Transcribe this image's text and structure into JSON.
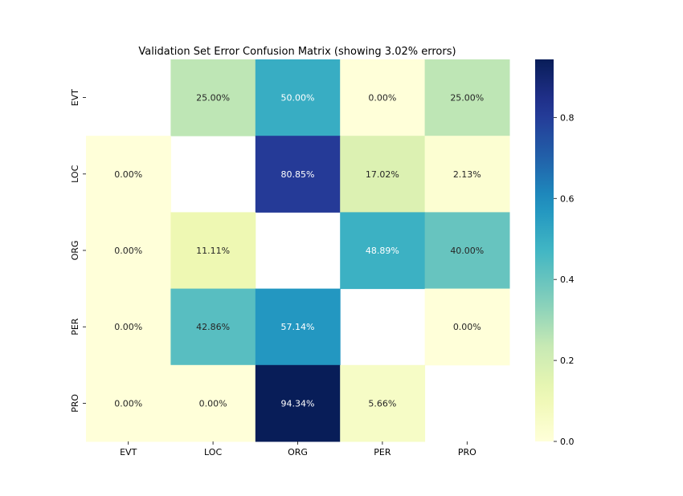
{
  "chart_data": {
    "type": "heatmap",
    "title": "Validation Set Error Confusion Matrix (showing 3.02% errors)",
    "rows": [
      "EVT",
      "LOC",
      "ORG",
      "PER",
      "PRO"
    ],
    "cols": [
      "EVT",
      "LOC",
      "ORG",
      "PER",
      "PRO"
    ],
    "values": [
      [
        null,
        0.25,
        0.5,
        0.0,
        0.25
      ],
      [
        0.0,
        null,
        0.8085,
        0.1702,
        0.0213
      ],
      [
        0.0,
        0.1111,
        null,
        0.4889,
        0.4
      ],
      [
        0.0,
        0.4286,
        0.5714,
        null,
        0.0
      ],
      [
        0.0,
        0.0,
        0.9434,
        0.0566,
        null
      ]
    ],
    "labels": [
      [
        "",
        "25.00%",
        "50.00%",
        "0.00%",
        "25.00%"
      ],
      [
        "0.00%",
        "",
        "80.85%",
        "17.02%",
        "2.13%"
      ],
      [
        "0.00%",
        "11.11%",
        "",
        "48.89%",
        "40.00%"
      ],
      [
        "0.00%",
        "42.86%",
        "57.14%",
        "",
        "0.00%"
      ],
      [
        "0.00%",
        "0.00%",
        "94.34%",
        "5.66%",
        ""
      ]
    ],
    "colorbar": {
      "colormap": "YlGnBu",
      "range": [
        0.0,
        0.9434
      ],
      "ticks": [
        0.0,
        0.2,
        0.4,
        0.6,
        0.8
      ],
      "tick_labels": [
        "0.0",
        "0.2",
        "0.4",
        "0.6",
        "0.8"
      ]
    },
    "grid": false
  }
}
